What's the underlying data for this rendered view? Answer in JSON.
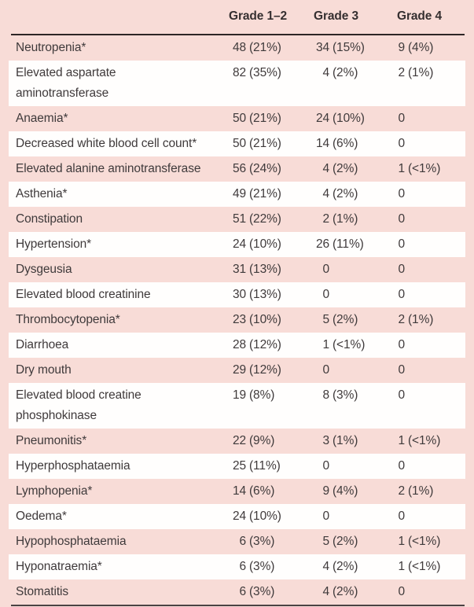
{
  "colors": {
    "table_background_pink": "#f8dcd7",
    "stripe_white": "#fffefd",
    "text": "#3f3a3b",
    "header_rule": "#2d2526"
  },
  "header": {
    "columns": [
      "Grade 1–2",
      "Grade 3",
      "Grade 4"
    ]
  },
  "rows": [
    {
      "label": "Neutropenia*",
      "cells": [
        {
          "n": "48",
          "p": "(21%)"
        },
        {
          "n": "34",
          "p": "(15%)"
        },
        {
          "n": "9",
          "p": "(4%)"
        }
      ]
    },
    {
      "label": "Elevated aspartate\naminotransferase",
      "cells": [
        {
          "n": "82",
          "p": "(35%)"
        },
        {
          "n": "4",
          "p": "(2%)"
        },
        {
          "n": "2",
          "p": "(1%)"
        }
      ]
    },
    {
      "label": "Anaemia*",
      "cells": [
        {
          "n": "50",
          "p": "(21%)"
        },
        {
          "n": "24",
          "p": "(10%)"
        },
        {
          "n": "0",
          "p": ""
        }
      ]
    },
    {
      "label": "Decreased white blood cell count*",
      "cells": [
        {
          "n": "50",
          "p": "(21%)"
        },
        {
          "n": "14",
          "p": "(6%)"
        },
        {
          "n": "0",
          "p": ""
        }
      ]
    },
    {
      "label": "Elevated alanine aminotransferase",
      "cells": [
        {
          "n": "56",
          "p": "(24%)"
        },
        {
          "n": "4",
          "p": "(2%)"
        },
        {
          "n": "1",
          "p": "(<1%)"
        }
      ]
    },
    {
      "label": "Asthenia*",
      "cells": [
        {
          "n": "49",
          "p": "(21%)"
        },
        {
          "n": "4",
          "p": "(2%)"
        },
        {
          "n": "0",
          "p": ""
        }
      ]
    },
    {
      "label": "Constipation",
      "cells": [
        {
          "n": "51",
          "p": "(22%)"
        },
        {
          "n": "2",
          "p": "(1%)"
        },
        {
          "n": "0",
          "p": ""
        }
      ]
    },
    {
      "label": "Hypertension*",
      "cells": [
        {
          "n": "24",
          "p": "(10%)"
        },
        {
          "n": "26",
          "p": "(11%)"
        },
        {
          "n": "0",
          "p": ""
        }
      ]
    },
    {
      "label": "Dysgeusia",
      "cells": [
        {
          "n": "31",
          "p": "(13%)"
        },
        {
          "n": "0",
          "p": ""
        },
        {
          "n": "0",
          "p": ""
        }
      ]
    },
    {
      "label": "Elevated blood creatinine",
      "cells": [
        {
          "n": "30",
          "p": "(13%)"
        },
        {
          "n": "0",
          "p": ""
        },
        {
          "n": "0",
          "p": ""
        }
      ]
    },
    {
      "label": "Thrombocytopenia*",
      "cells": [
        {
          "n": "23",
          "p": "(10%)"
        },
        {
          "n": "5",
          "p": "(2%)"
        },
        {
          "n": "2",
          "p": "(1%)"
        }
      ]
    },
    {
      "label": "Diarrhoea",
      "cells": [
        {
          "n": "28",
          "p": "(12%)"
        },
        {
          "n": "1",
          "p": "(<1%)"
        },
        {
          "n": "0",
          "p": ""
        }
      ]
    },
    {
      "label": "Dry mouth",
      "cells": [
        {
          "n": "29",
          "p": "(12%)"
        },
        {
          "n": "0",
          "p": ""
        },
        {
          "n": "0",
          "p": ""
        }
      ]
    },
    {
      "label": "Elevated blood creatine\nphosphokinase",
      "cells": [
        {
          "n": "19",
          "p": "(8%)"
        },
        {
          "n": "8",
          "p": "(3%)"
        },
        {
          "n": "0",
          "p": ""
        }
      ]
    },
    {
      "label": "Pneumonitis*",
      "cells": [
        {
          "n": "22",
          "p": "(9%)"
        },
        {
          "n": "3",
          "p": "(1%)"
        },
        {
          "n": "1",
          "p": "(<1%)"
        }
      ]
    },
    {
      "label": "Hyperphosphataemia",
      "cells": [
        {
          "n": "25",
          "p": "(11%)"
        },
        {
          "n": "0",
          "p": ""
        },
        {
          "n": "0",
          "p": ""
        }
      ]
    },
    {
      "label": "Lymphopenia*",
      "cells": [
        {
          "n": "14",
          "p": "(6%)"
        },
        {
          "n": "9",
          "p": "(4%)"
        },
        {
          "n": "2",
          "p": "(1%)"
        }
      ]
    },
    {
      "label": "Oedema*",
      "cells": [
        {
          "n": "24",
          "p": "(10%)"
        },
        {
          "n": "0",
          "p": ""
        },
        {
          "n": "0",
          "p": ""
        }
      ]
    },
    {
      "label": "Hypophosphataemia",
      "cells": [
        {
          "n": "6",
          "p": "(3%)"
        },
        {
          "n": "5",
          "p": "(2%)"
        },
        {
          "n": "1",
          "p": "(<1%)"
        }
      ]
    },
    {
      "label": "Hyponatraemia*",
      "cells": [
        {
          "n": "6",
          "p": "(3%)"
        },
        {
          "n": "4",
          "p": "(2%)"
        },
        {
          "n": "1",
          "p": "(<1%)"
        }
      ]
    },
    {
      "label": "Stomatitis",
      "cells": [
        {
          "n": "6",
          "p": "(3%)"
        },
        {
          "n": "4",
          "p": "(2%)"
        },
        {
          "n": "0",
          "p": ""
        }
      ]
    }
  ]
}
